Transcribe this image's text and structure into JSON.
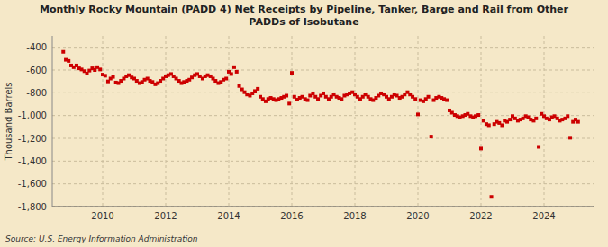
{
  "chart_data": {
    "type": "scatter",
    "title": "Monthly Rocky Mountain (PADD 4) Net Receipts by Pipeline, Tanker, Barge and Rail from Other\nPADDs of Isobutane",
    "ylabel": "Thousand Barrels",
    "source": "Source: U.S. Energy Information Administration",
    "color": "#cc0000",
    "marker": "square",
    "grid": true,
    "xlim": [
      2008.4,
      2025.6
    ],
    "xticks": [
      2010,
      2012,
      2014,
      2016,
      2018,
      2020,
      2022,
      2024
    ],
    "ylim": [
      -1800,
      -300
    ],
    "yticks": [
      {
        "value": -1800,
        "label": "-1,800"
      },
      {
        "value": -1600,
        "label": "-1,600"
      },
      {
        "value": -1400,
        "label": "-1,400"
      },
      {
        "value": -1200,
        "label": "-1,200"
      },
      {
        "value": -1000,
        "label": "-1,000"
      },
      -800,
      -600,
      -400
    ],
    "x": [
      2008.75,
      2008.83,
      2008.92,
      2009.0,
      2009.08,
      2009.17,
      2009.25,
      2009.33,
      2009.42,
      2009.5,
      2009.58,
      2009.67,
      2009.75,
      2009.83,
      2009.92,
      2010.0,
      2010.08,
      2010.17,
      2010.25,
      2010.33,
      2010.42,
      2010.5,
      2010.58,
      2010.67,
      2010.75,
      2010.83,
      2010.92,
      2011.0,
      2011.08,
      2011.17,
      2011.25,
      2011.33,
      2011.42,
      2011.5,
      2011.58,
      2011.67,
      2011.75,
      2011.83,
      2011.92,
      2012.0,
      2012.08,
      2012.17,
      2012.25,
      2012.33,
      2012.42,
      2012.5,
      2012.58,
      2012.67,
      2012.75,
      2012.83,
      2012.92,
      2013.0,
      2013.08,
      2013.17,
      2013.25,
      2013.33,
      2013.42,
      2013.5,
      2013.58,
      2013.67,
      2013.75,
      2013.83,
      2013.92,
      2014.0,
      2014.08,
      2014.17,
      2014.25,
      2014.33,
      2014.42,
      2014.5,
      2014.58,
      2014.67,
      2014.75,
      2014.83,
      2014.92,
      2015.0,
      2015.08,
      2015.17,
      2015.25,
      2015.33,
      2015.42,
      2015.5,
      2015.58,
      2015.67,
      2015.75,
      2015.83,
      2015.92,
      2016.0,
      2016.08,
      2016.17,
      2016.25,
      2016.33,
      2016.42,
      2016.5,
      2016.58,
      2016.67,
      2016.75,
      2016.83,
      2016.92,
      2017.0,
      2017.08,
      2017.17,
      2017.25,
      2017.33,
      2017.42,
      2017.5,
      2017.58,
      2017.67,
      2017.75,
      2017.83,
      2017.92,
      2018.0,
      2018.08,
      2018.17,
      2018.25,
      2018.33,
      2018.42,
      2018.5,
      2018.58,
      2018.67,
      2018.75,
      2018.83,
      2018.92,
      2019.0,
      2019.08,
      2019.17,
      2019.25,
      2019.33,
      2019.42,
      2019.5,
      2019.58,
      2019.67,
      2019.75,
      2019.83,
      2019.92,
      2020.0,
      2020.08,
      2020.17,
      2020.25,
      2020.33,
      2020.42,
      2020.5,
      2020.58,
      2020.67,
      2020.75,
      2020.83,
      2020.92,
      2021.0,
      2021.08,
      2021.17,
      2021.25,
      2021.33,
      2021.42,
      2021.5,
      2021.58,
      2021.67,
      2021.75,
      2021.83,
      2021.92,
      2022.0,
      2022.08,
      2022.17,
      2022.25,
      2022.33,
      2022.42,
      2022.5,
      2022.58,
      2022.67,
      2022.75,
      2022.83,
      2022.92,
      2023.0,
      2023.08,
      2023.17,
      2023.25,
      2023.33,
      2023.42,
      2023.5,
      2023.58,
      2023.67,
      2023.75,
      2023.83,
      2023.92,
      2024.0,
      2024.08,
      2024.17,
      2024.25,
      2024.33,
      2024.42,
      2024.5,
      2024.58,
      2024.67,
      2024.75,
      2024.83,
      2024.92,
      2025.0,
      2025.08
    ],
    "values": [
      -440,
      -510,
      -520,
      -560,
      -575,
      -560,
      -585,
      -595,
      -610,
      -630,
      -605,
      -585,
      -600,
      -575,
      -595,
      -640,
      -650,
      -700,
      -675,
      -660,
      -710,
      -715,
      -695,
      -675,
      -655,
      -645,
      -665,
      -675,
      -695,
      -715,
      -705,
      -685,
      -675,
      -695,
      -705,
      -725,
      -715,
      -695,
      -675,
      -655,
      -645,
      -635,
      -655,
      -675,
      -695,
      -715,
      -705,
      -695,
      -685,
      -665,
      -645,
      -635,
      -655,
      -675,
      -655,
      -645,
      -655,
      -675,
      -695,
      -715,
      -705,
      -685,
      -675,
      -615,
      -635,
      -575,
      -615,
      -740,
      -770,
      -795,
      -815,
      -825,
      -805,
      -785,
      -765,
      -835,
      -855,
      -875,
      -855,
      -845,
      -855,
      -865,
      -855,
      -845,
      -835,
      -825,
      -895,
      -625,
      -835,
      -860,
      -845,
      -835,
      -855,
      -865,
      -825,
      -805,
      -835,
      -855,
      -825,
      -805,
      -835,
      -855,
      -835,
      -815,
      -835,
      -845,
      -855,
      -825,
      -815,
      -805,
      -795,
      -815,
      -835,
      -855,
      -835,
      -815,
      -835,
      -855,
      -865,
      -845,
      -825,
      -805,
      -815,
      -835,
      -855,
      -835,
      -815,
      -825,
      -845,
      -835,
      -815,
      -795,
      -815,
      -835,
      -855,
      -990,
      -865,
      -875,
      -855,
      -835,
      -1185,
      -865,
      -845,
      -835,
      -845,
      -855,
      -865,
      -955,
      -975,
      -995,
      -1005,
      -1015,
      -1005,
      -995,
      -985,
      -1005,
      -1015,
      -1005,
      -995,
      -1290,
      -1045,
      -1075,
      -1085,
      -1715,
      -1075,
      -1055,
      -1065,
      -1085,
      -1045,
      -1055,
      -1035,
      -1005,
      -1025,
      -1045,
      -1035,
      -1025,
      -1005,
      -1015,
      -1035,
      -1045,
      -1025,
      -1275,
      -985,
      -1005,
      -1025,
      -1035,
      -1015,
      -1005,
      -1025,
      -1045,
      -1035,
      -1025,
      -1005,
      -1195,
      -1055,
      -1035,
      -1055
    ]
  }
}
